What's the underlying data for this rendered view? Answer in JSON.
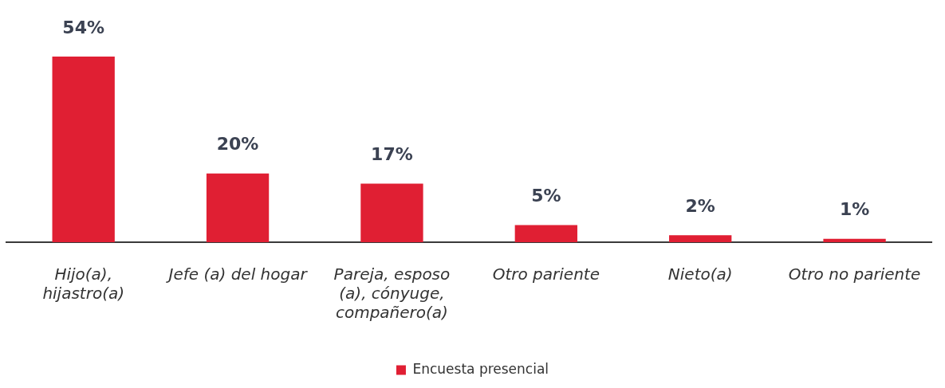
{
  "chart_data": {
    "type": "bar",
    "categories": [
      "Hijo(a), hijastro(a)",
      "Jefe (a) del hogar",
      "Pareja, esposo (a), cónyuge, compañero(a)",
      "Otro pariente",
      "Nieto(a)",
      "Otro no pariente"
    ],
    "series": [
      {
        "name": "Encuesta presencial",
        "color": "#e01f33",
        "values": [
          54,
          20,
          17,
          5,
          2,
          1
        ],
        "value_labels": [
          "54%",
          "20%",
          "17%",
          "5%",
          "2%",
          "1%"
        ]
      }
    ],
    "legend": "bottom",
    "grid": false
  }
}
